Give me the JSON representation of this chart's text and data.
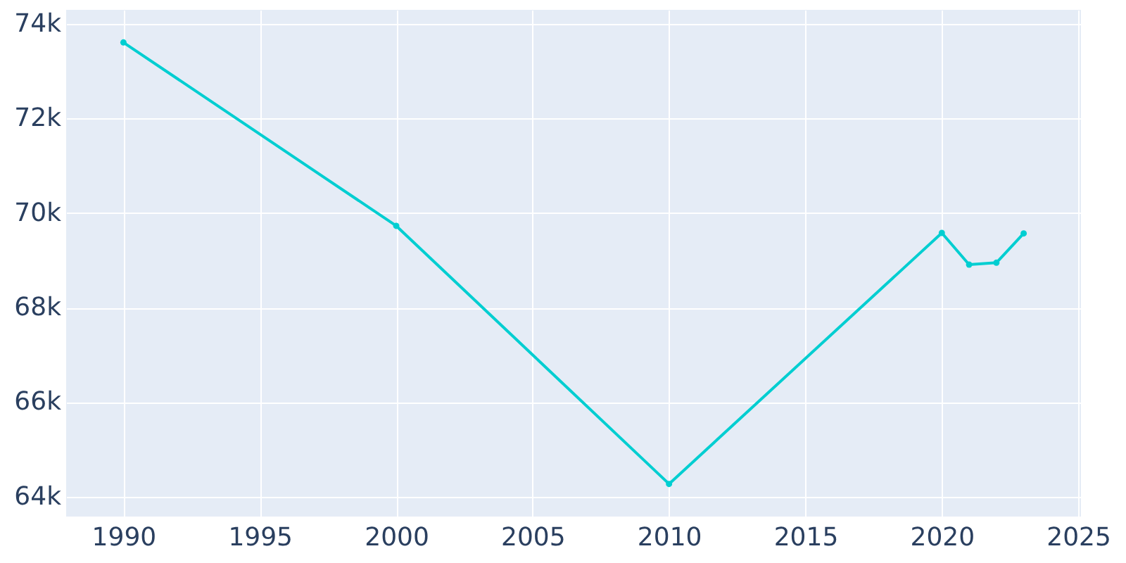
{
  "chart_data": {
    "type": "line",
    "x": [
      1990,
      2000,
      2010,
      2020,
      2021,
      2022,
      2023
    ],
    "series": [
      {
        "color": "#00ced1",
        "values": [
          73610,
          69730,
          64270,
          69580,
          68910,
          68950,
          69570
        ]
      }
    ],
    "xlim": [
      1987.9,
      2025.1
    ],
    "xticks": [
      1990,
      1995,
      2000,
      2005,
      2010,
      2015,
      2020,
      2025
    ],
    "ylim": [
      63580,
      74300
    ],
    "yticks": [
      {
        "value": 64000,
        "label": "64k"
      },
      {
        "value": 66000,
        "label": "66k"
      },
      {
        "value": 68000,
        "label": "68k"
      },
      {
        "value": 70000,
        "label": "70k"
      },
      {
        "value": 72000,
        "label": "72k"
      },
      {
        "value": 74000,
        "label": "74k"
      }
    ],
    "grid": true,
    "marker": "circle",
    "line_style": "solid"
  }
}
